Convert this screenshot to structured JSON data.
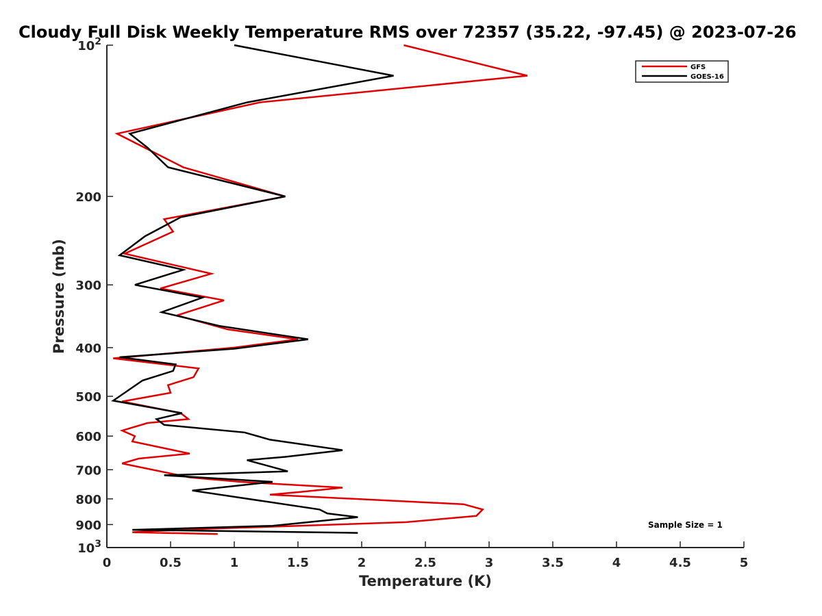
{
  "chart_data": {
    "type": "line",
    "title": "Cloudy Full Disk Weekly Temperature RMS over 72357 (35.22, -97.45) @ 2023-07-26",
    "xlabel": "Temperature (K)",
    "ylabel": "Pressure (mb)",
    "xlim": [
      0,
      5
    ],
    "ylim": [
      100,
      1000
    ],
    "yscale": "log",
    "y_reversed": true,
    "x_ticks": [
      "0",
      "0.5",
      "1",
      "1.5",
      "2",
      "2.5",
      "3",
      "3.5",
      "4",
      "4.5",
      "5"
    ],
    "y_ticks": [
      {
        "value": 100,
        "base": "10",
        "exp": "2"
      },
      {
        "value": 200,
        "label": "200"
      },
      {
        "value": 300,
        "label": "300"
      },
      {
        "value": 400,
        "label": "400"
      },
      {
        "value": 500,
        "label": "500"
      },
      {
        "value": 600,
        "label": "600"
      },
      {
        "value": 700,
        "label": "700"
      },
      {
        "value": 800,
        "label": "800"
      },
      {
        "value": 900,
        "label": "900"
      },
      {
        "value": 1000,
        "base": "10",
        "exp": "3"
      }
    ],
    "grid": false,
    "legend_position": "top-right",
    "annotation": "Sample Size = 1",
    "series": [
      {
        "name": "GFS",
        "color": "#e00000",
        "points": [
          [
            2.33,
            100
          ],
          [
            3.3,
            115
          ],
          [
            1.2,
            130
          ],
          [
            0.08,
            150
          ],
          [
            0.6,
            175
          ],
          [
            1.4,
            200
          ],
          [
            0.45,
            222
          ],
          [
            0.52,
            235
          ],
          [
            0.14,
            260
          ],
          [
            0.82,
            285
          ],
          [
            0.42,
            305
          ],
          [
            0.92,
            322
          ],
          [
            0.55,
            345
          ],
          [
            0.95,
            368
          ],
          [
            1.5,
            385
          ],
          [
            1.0,
            400
          ],
          [
            0.05,
            420
          ],
          [
            0.72,
            440
          ],
          [
            0.68,
            458
          ],
          [
            0.48,
            475
          ],
          [
            0.5,
            492
          ],
          [
            0.12,
            512
          ],
          [
            0.58,
            540
          ],
          [
            0.64,
            555
          ],
          [
            0.32,
            565
          ],
          [
            0.12,
            585
          ],
          [
            0.22,
            600
          ],
          [
            0.2,
            615
          ],
          [
            0.65,
            650
          ],
          [
            0.25,
            665
          ],
          [
            0.12,
            680
          ],
          [
            0.65,
            725
          ],
          [
            1.05,
            740
          ],
          [
            1.85,
            760
          ],
          [
            1.52,
            775
          ],
          [
            1.28,
            785
          ],
          [
            2.8,
            820
          ],
          [
            2.95,
            840
          ],
          [
            2.9,
            865
          ],
          [
            2.35,
            890
          ],
          [
            1.5,
            905
          ],
          [
            0.65,
            920
          ],
          [
            0.2,
            932
          ],
          [
            0.87,
            940
          ]
        ]
      },
      {
        "name": "GOES-16",
        "color": "#000000",
        "points": [
          [
            1.0,
            100
          ],
          [
            2.25,
            115
          ],
          [
            1.1,
            130
          ],
          [
            0.18,
            150
          ],
          [
            0.32,
            160
          ],
          [
            0.48,
            175
          ],
          [
            1.4,
            200
          ],
          [
            0.58,
            220
          ],
          [
            0.3,
            240
          ],
          [
            0.1,
            262
          ],
          [
            0.6,
            280
          ],
          [
            0.22,
            300
          ],
          [
            0.75,
            318
          ],
          [
            0.43,
            340
          ],
          [
            0.88,
            362
          ],
          [
            1.58,
            385
          ],
          [
            1.0,
            402
          ],
          [
            0.1,
            418
          ],
          [
            0.54,
            432
          ],
          [
            0.52,
            445
          ],
          [
            0.28,
            465
          ],
          [
            0.05,
            510
          ],
          [
            0.59,
            540
          ],
          [
            0.39,
            555
          ],
          [
            0.45,
            570
          ],
          [
            1.08,
            590
          ],
          [
            1.28,
            610
          ],
          [
            1.85,
            640
          ],
          [
            1.4,
            660
          ],
          [
            1.1,
            670
          ],
          [
            1.42,
            705
          ],
          [
            0.45,
            718
          ],
          [
            1.3,
            740
          ],
          [
            0.67,
            770
          ],
          [
            1.67,
            840
          ],
          [
            1.73,
            855
          ],
          [
            1.97,
            870
          ],
          [
            1.3,
            905
          ],
          [
            0.2,
            922
          ],
          [
            1.97,
            935
          ]
        ]
      }
    ]
  }
}
